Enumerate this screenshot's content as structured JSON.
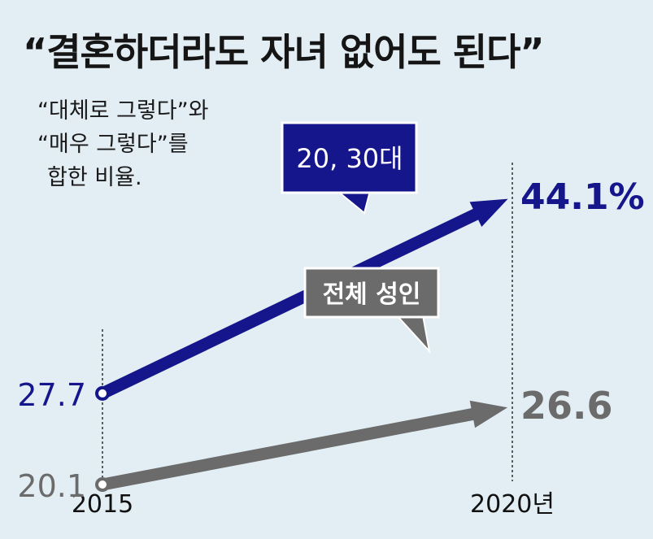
{
  "title": "“결혼하더라도 자녀 없어도 된다”",
  "note": {
    "line1": "“대체로 그렇다”와",
    "line2": "“매우 그렇다”를",
    "line3": "합한 비율."
  },
  "colors": {
    "background": "#e3eef4",
    "young": "#16168c",
    "all": "#6b6b6b"
  },
  "chart_data": {
    "type": "line",
    "title": "“결혼하더라도 자녀 없어도 된다”",
    "xlabel": "",
    "ylabel": "",
    "x": [
      "2015",
      "2020년"
    ],
    "series": [
      {
        "name": "20, 30대",
        "values": [
          27.7,
          44.1
        ],
        "start_label": "27.7",
        "end_label": "44.1%",
        "color": "#16168c"
      },
      {
        "name": "전체 성인",
        "values": [
          20.1,
          26.6
        ],
        "start_label": "20.1",
        "end_label": "26.6",
        "color": "#6b6b6b"
      }
    ],
    "ylim": [
      14,
      54
    ],
    "grid": false,
    "legend": "callout labels"
  }
}
